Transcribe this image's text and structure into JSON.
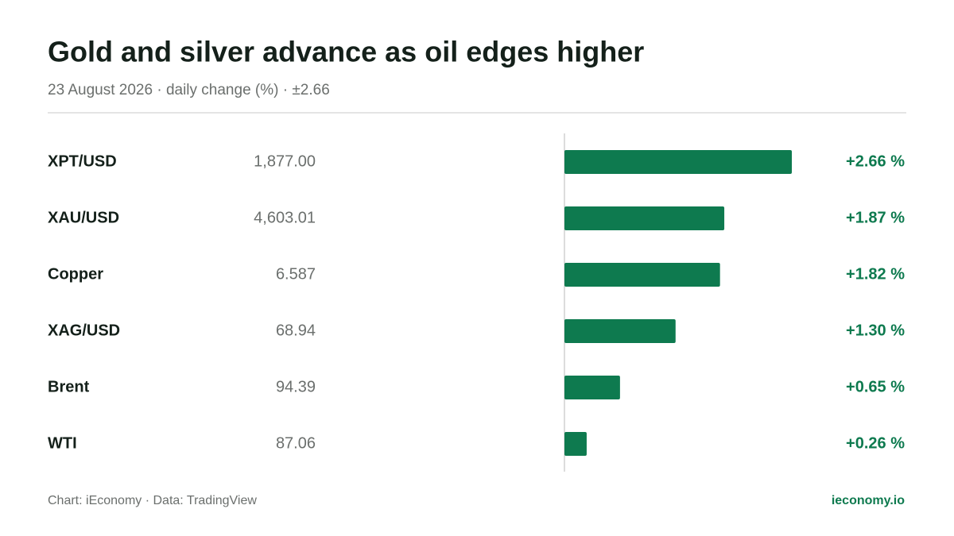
{
  "chart_data": {
    "type": "bar",
    "title": "Gold and silver advance as oil edges higher",
    "subtitle": "23 August 2026 · daily change (%) · ±2.66",
    "categories": [
      "XPT/USD",
      "XAU/USD",
      "Copper",
      "XAG/USD",
      "Brent",
      "WTI"
    ],
    "prices": [
      "1,877.00",
      "4,603.01",
      "6.587",
      "68.94",
      "94.39",
      "87.06"
    ],
    "values": [
      2.66,
      1.87,
      1.82,
      1.3,
      0.65,
      0.26
    ],
    "value_labels": [
      "+2.66 %",
      "+1.87 %",
      "+1.82 %",
      "+1.30 %",
      "+0.65 %",
      "+0.26 %"
    ],
    "color": "#0e7a4f",
    "xlim": [
      -2.66,
      2.66
    ],
    "source": "Chart: iEconomy · Data: TradingView",
    "brand": "ieconomy.io"
  }
}
